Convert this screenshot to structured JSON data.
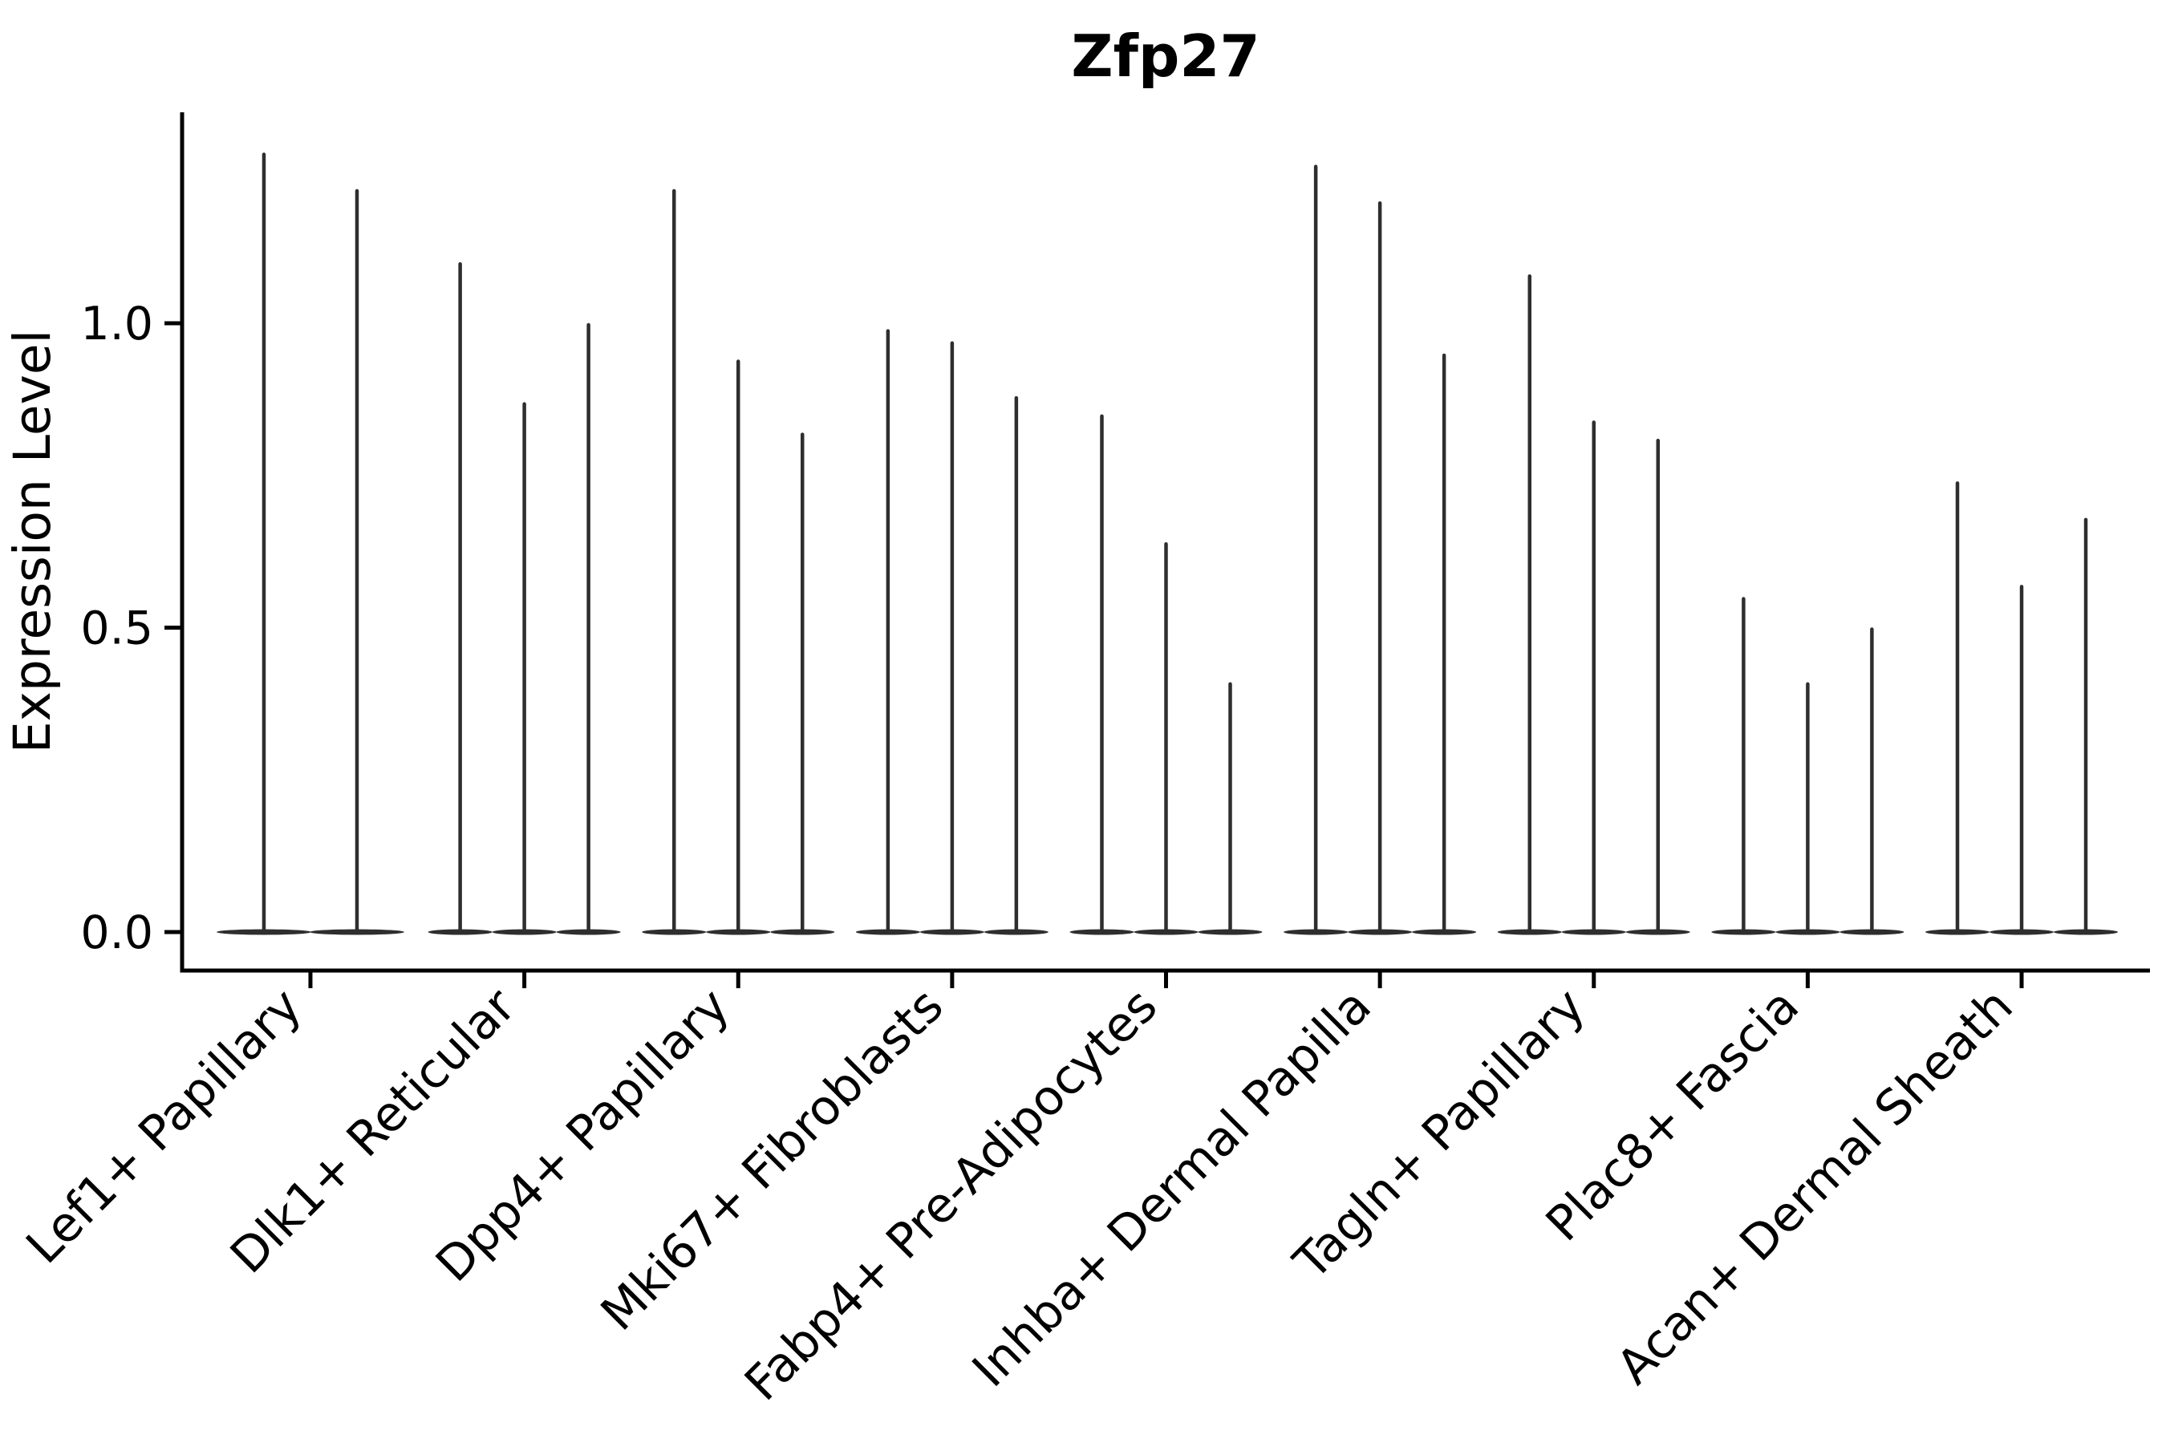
{
  "chart_data": {
    "type": "violin",
    "title": "Zfp27",
    "ylabel": "Expression Level",
    "xlabel": "",
    "yticks": [
      "0.0",
      "0.5",
      "1.0"
    ],
    "ytick_values": [
      0.0,
      0.5,
      1.0
    ],
    "ylim": [
      -0.065,
      1.35
    ],
    "grid": false,
    "legend": "none",
    "violin_shape": "zero-inflated: wide flat base at 0 with a thin vertical spike rising to the max expression value",
    "line_color": "#2e2e2e",
    "spine_color": "#000000",
    "background_color": "#ffffff",
    "categories": [
      "Lef1+ Papillary",
      "Dlk1+ Reticular",
      "Dpp4+ Papillary",
      "Mki67+ Fibroblasts",
      "Fabp4+ Pre-Adipocytes",
      "Inhba+ Dermal Papilla",
      "Tagln+ Papillary",
      "Plac8+ Fascia",
      "Acan+ Dermal Sheath"
    ],
    "series": [
      {
        "category": "Lef1+ Papillary",
        "violin_max_values": [
          1.28,
          1.22
        ]
      },
      {
        "category": "Dlk1+ Reticular",
        "violin_max_values": [
          1.1,
          0.87,
          1.0
        ]
      },
      {
        "category": "Dpp4+ Papillary",
        "violin_max_values": [
          1.22,
          0.94,
          0.82
        ]
      },
      {
        "category": "Mki67+ Fibroblasts",
        "violin_max_values": [
          0.99,
          0.97,
          0.88
        ]
      },
      {
        "category": "Fabp4+ Pre-Adipocytes",
        "violin_max_values": [
          0.85,
          0.64,
          0.41
        ]
      },
      {
        "category": "Inhba+ Dermal Papilla",
        "violin_max_values": [
          1.26,
          1.2,
          0.95
        ]
      },
      {
        "category": "Tagln+ Papillary",
        "violin_max_values": [
          1.08,
          0.84,
          0.81
        ]
      },
      {
        "category": "Plac8+ Fascia",
        "violin_max_values": [
          0.55,
          0.41,
          0.5
        ]
      },
      {
        "category": "Acan+ Dermal Sheath",
        "violin_max_values": [
          0.74,
          0.57,
          0.68
        ]
      }
    ]
  }
}
